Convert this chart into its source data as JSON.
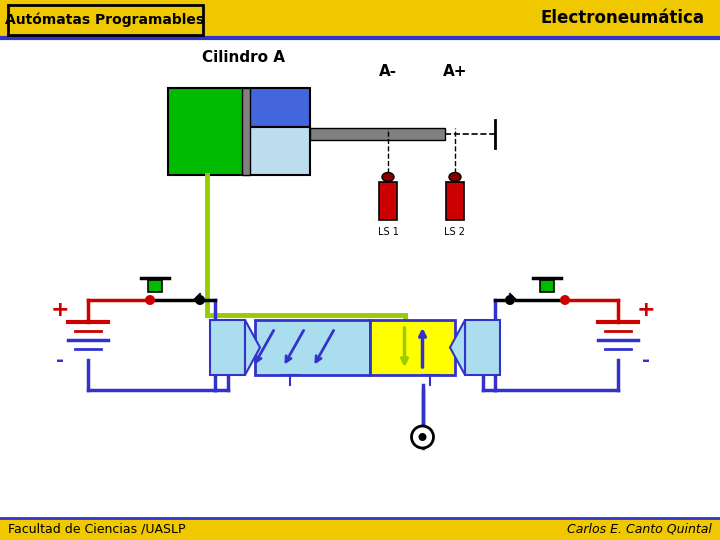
{
  "title": "Electroneumática",
  "subtitle": "Autómatas Programables",
  "cylinder_label": "Cilindro A",
  "label_Am": "A-",
  "label_Ap": "A+",
  "label_LS1": "LS 1",
  "label_LS2": "LS 2",
  "label_plus": "+",
  "label_minus": "-",
  "footer_left": "Facultad de Ciencias /UASLP",
  "footer_right": "Carlos E. Canto Quintal",
  "bg_color": "#ffffff",
  "bar_color": "#f0c800",
  "wire_red": "#cc0000",
  "wire_blue": "#1111cc",
  "wire_green": "#99cc00",
  "cyl_green": "#00bb00",
  "cyl_blue_top": "#4466dd",
  "cyl_lightblue": "#aaccdd",
  "cyl_gray": "#808080",
  "cyl_lightblue2": "#bbddee",
  "sensor_red": "#cc0000",
  "sensor_dark": "#880000",
  "valve_yellow": "#ffff00",
  "valve_lb": "#aaddee",
  "btn_green": "#00bb00",
  "black": "#000000",
  "blue_line": "#3333cc"
}
